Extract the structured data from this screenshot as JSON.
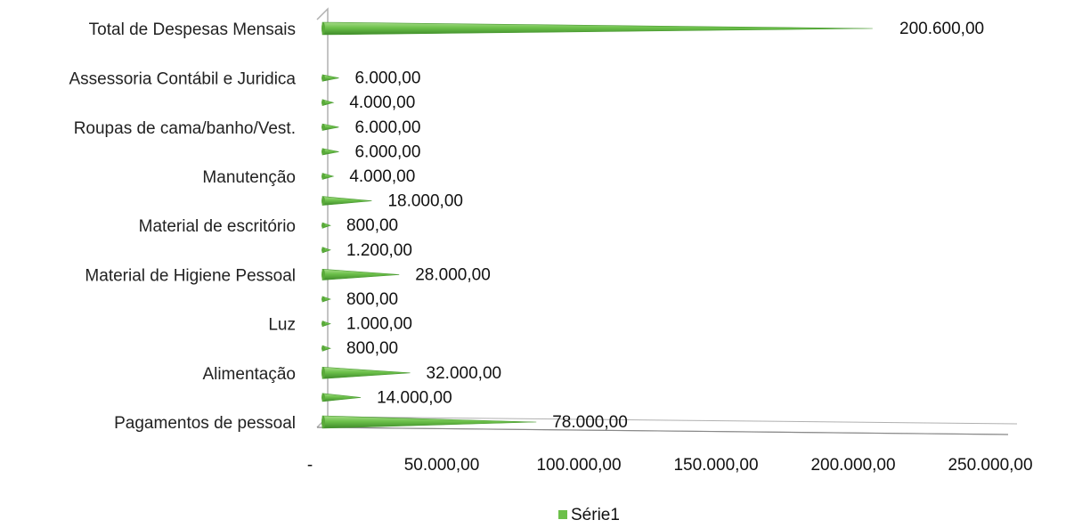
{
  "chart_data": {
    "type": "bar",
    "orientation": "horizontal",
    "style": "3d-cone",
    "categories": [
      "Pagamentos de pessoal",
      "",
      "Alimentação",
      "",
      "Luz",
      "",
      "Material de Higiene Pessoal",
      "",
      "Material de escritório",
      "",
      "Manutenção",
      "",
      "Roupas de cama/banho/Vest.",
      "",
      "Assessoria Contábil e Juridica",
      "Total de Despesas Mensais"
    ],
    "series": [
      {
        "name": "Série1",
        "values": [
          78000,
          14000,
          32000,
          800,
          1000,
          800,
          28000,
          1200,
          800,
          18000,
          4000,
          6000,
          6000,
          4000,
          6000,
          200600
        ],
        "labels": [
          "78.000,00",
          "14.000,00",
          "32.000,00",
          "800,00",
          "1.000,00",
          "800,00",
          "28.000,00",
          "1.200,00",
          "800,00",
          "18.000,00",
          "4.000,00",
          "6.000,00",
          "6.000,00",
          "4.000,00",
          "6.000,00",
          "200.600,00"
        ]
      }
    ],
    "xlim": [
      0,
      250000
    ],
    "x_ticks": [
      0,
      50000,
      100000,
      150000,
      200000,
      250000
    ],
    "x_tick_labels": [
      "-",
      "50.000,00",
      "100.000,00",
      "150.000,00",
      "200.000,00",
      "250.000,00"
    ],
    "grid": false,
    "legend": "bottom",
    "colors": {
      "bar": "#6cc04a",
      "bar_dark": "#3e8a2a",
      "axis": "#b0b0b0"
    }
  }
}
